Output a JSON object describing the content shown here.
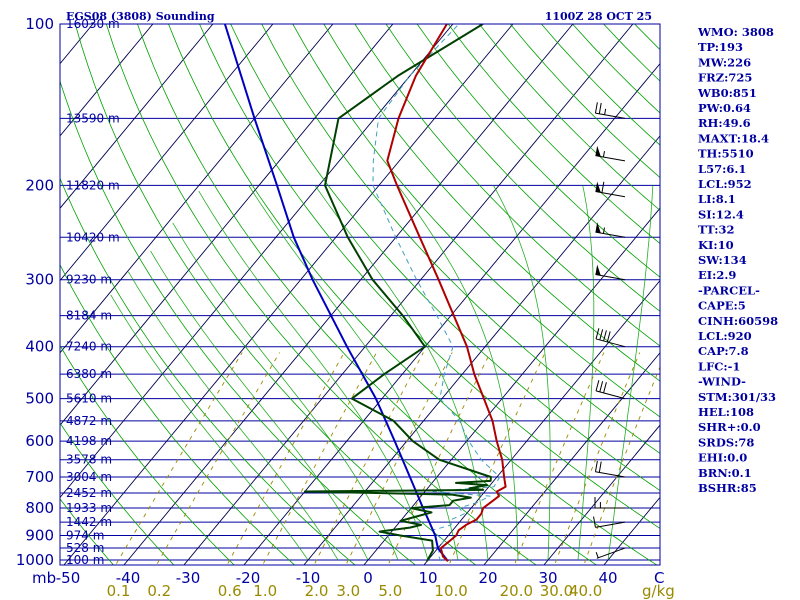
{
  "chart_data": {
    "type": "skew-t",
    "title_left": "EGS08 (3808) Sounding",
    "title_right": "1100Z 28 OCT 25",
    "pressure_unit": "mb",
    "temperature_unit": "C",
    "mixing_ratio_unit": "g/kg",
    "pressure_ticks": [
      100,
      200,
      300,
      400,
      500,
      600,
      700,
      800,
      900,
      1000
    ],
    "temperature_ticks": [
      -50,
      -40,
      -30,
      -20,
      -10,
      0,
      10,
      20,
      30,
      40
    ],
    "mixing_ratio_ticks": [
      "0.1",
      "0.2",
      "0.6",
      "1.0",
      "2.0",
      "3.0",
      "5.0",
      "10.0",
      "20.0",
      "30.0",
      "40.0"
    ],
    "height_labels": [
      {
        "p": 100,
        "label": "16030 m"
      },
      {
        "p": 150,
        "label": "13590 m"
      },
      {
        "p": 200,
        "label": "11820 m"
      },
      {
        "p": 250,
        "label": "10420 m"
      },
      {
        "p": 300,
        "label": "9230 m"
      },
      {
        "p": 350,
        "label": "8184 m"
      },
      {
        "p": 400,
        "label": "7240 m"
      },
      {
        "p": 450,
        "label": "6380 m"
      },
      {
        "p": 500,
        "label": "5610 m"
      },
      {
        "p": 550,
        "label": "4872 m"
      },
      {
        "p": 600,
        "label": "4198 m"
      },
      {
        "p": 650,
        "label": "3578 m"
      },
      {
        "p": 700,
        "label": "3004 m"
      },
      {
        "p": 750,
        "label": "2452 m"
      },
      {
        "p": 800,
        "label": "1933 m"
      },
      {
        "p": 850,
        "label": "1442 m"
      },
      {
        "p": 900,
        "label": "974 m"
      },
      {
        "p": 950,
        "label": "528 m"
      },
      {
        "p": 1000,
        "label": "100 m"
      }
    ],
    "temperature_profile": [
      {
        "p": 1005,
        "t": 13.5
      },
      {
        "p": 985,
        "t": 12.0
      },
      {
        "p": 950,
        "t": 10.5
      },
      {
        "p": 920,
        "t": 11.0
      },
      {
        "p": 900,
        "t": 11.3
      },
      {
        "p": 880,
        "t": 11.0
      },
      {
        "p": 860,
        "t": 11.5
      },
      {
        "p": 840,
        "t": 12.5
      },
      {
        "p": 820,
        "t": 12.5
      },
      {
        "p": 800,
        "t": 12.0
      },
      {
        "p": 780,
        "t": 12.5
      },
      {
        "p": 760,
        "t": 13.0
      },
      {
        "p": 745,
        "t": 12.0
      },
      {
        "p": 730,
        "t": 12.8
      },
      {
        "p": 700,
        "t": 11.2
      },
      {
        "p": 650,
        "t": 8.5
      },
      {
        "p": 600,
        "t": 5.0
      },
      {
        "p": 550,
        "t": 1.5
      },
      {
        "p": 500,
        "t": -3.0
      },
      {
        "p": 450,
        "t": -8.0
      },
      {
        "p": 400,
        "t": -13.0
      },
      {
        "p": 350,
        "t": -19.5
      },
      {
        "p": 300,
        "t": -27.0
      },
      {
        "p": 250,
        "t": -36.0
      },
      {
        "p": 200,
        "t": -47.0
      },
      {
        "p": 180,
        "t": -52.0
      },
      {
        "p": 150,
        "t": -56.0
      },
      {
        "p": 125,
        "t": -59.0
      },
      {
        "p": 100,
        "t": -61.0
      }
    ],
    "dewpoint_profile": [
      {
        "p": 1005,
        "t": 10.0
      },
      {
        "p": 960,
        "t": 9.5
      },
      {
        "p": 920,
        "t": 8.0
      },
      {
        "p": 900,
        "t": 2.0
      },
      {
        "p": 885,
        "t": -2.0
      },
      {
        "p": 870,
        "t": 2.5
      },
      {
        "p": 860,
        "t": 4.0
      },
      {
        "p": 845,
        "t": 0.0
      },
      {
        "p": 830,
        "t": 2.0
      },
      {
        "p": 815,
        "t": 4.0
      },
      {
        "p": 800,
        "t": 0.0
      },
      {
        "p": 790,
        "t": 6.0
      },
      {
        "p": 775,
        "t": 6.0
      },
      {
        "p": 765,
        "t": 8.5
      },
      {
        "p": 755,
        "t": 5.0
      },
      {
        "p": 745,
        "t": -20.0
      },
      {
        "p": 740,
        "t": 9.5
      },
      {
        "p": 735,
        "t": 7.0
      },
      {
        "p": 725,
        "t": 9.5
      },
      {
        "p": 718,
        "t": 4.0
      },
      {
        "p": 712,
        "t": 9.5
      },
      {
        "p": 700,
        "t": 9.0
      },
      {
        "p": 650,
        "t": -2.0
      },
      {
        "p": 600,
        "t": -9.0
      },
      {
        "p": 550,
        "t": -15.0
      },
      {
        "p": 500,
        "t": -25.0
      },
      {
        "p": 450,
        "t": -23.0
      },
      {
        "p": 400,
        "t": -20.0
      },
      {
        "p": 350,
        "t": -28.0
      },
      {
        "p": 300,
        "t": -38.0
      },
      {
        "p": 250,
        "t": -48.0
      },
      {
        "p": 200,
        "t": -59.0
      },
      {
        "p": 150,
        "t": -66.0
      },
      {
        "p": 125,
        "t": -62.0
      },
      {
        "p": 100,
        "t": -55.0
      }
    ],
    "parcel_profile": [
      {
        "p": 1005,
        "t": 13.5
      },
      {
        "p": 950,
        "t": 10.0
      },
      {
        "p": 900,
        "t": 7.8
      },
      {
        "p": 850,
        "t": 5.0
      },
      {
        "p": 800,
        "t": 2.0
      },
      {
        "p": 700,
        "t": -4.5
      },
      {
        "p": 600,
        "t": -12.0
      },
      {
        "p": 500,
        "t": -21.0
      },
      {
        "p": 400,
        "t": -33.0
      },
      {
        "p": 300,
        "t": -48.0
      },
      {
        "p": 250,
        "t": -57.0
      },
      {
        "p": 200,
        "t": -67.0
      },
      {
        "p": 150,
        "t": -80.0
      },
      {
        "p": 100,
        "t": -98.0
      }
    ],
    "wind_barbs": [
      {
        "p": 150,
        "dir": 280,
        "kt": 25
      },
      {
        "p": 180,
        "dir": 280,
        "kt": 55
      },
      {
        "p": 210,
        "dir": 280,
        "kt": 60
      },
      {
        "p": 250,
        "dir": 280,
        "kt": 55
      },
      {
        "p": 300,
        "dir": 280,
        "kt": 50
      },
      {
        "p": 400,
        "dir": 285,
        "kt": 40
      },
      {
        "p": 500,
        "dir": 285,
        "kt": 30
      },
      {
        "p": 700,
        "dir": 280,
        "kt": 20
      },
      {
        "p": 800,
        "dir": 270,
        "kt": 15
      },
      {
        "p": 850,
        "dir": 260,
        "kt": 10
      },
      {
        "p": 950,
        "dir": 250,
        "kt": 5
      }
    ],
    "indices": [
      "WMO: 3808",
      "TP:193",
      "MW:226",
      "FRZ:725",
      "WB0:851",
      "PW:0.64",
      "RH:49.6",
      "MAXT:18.4",
      "TH:5510",
      "L57:6.1",
      "LCL:952",
      "LI:8.1",
      "SI:12.4",
      "TT:32",
      "KI:10",
      "SW:134",
      "EI:2.9",
      "-PARCEL-",
      "CAPE:5",
      "CINH:60598",
      "LCL:920",
      "CAP:7.8",
      "LFC:-1",
      "-WIND-",
      "STM:301/33",
      "HEL:108",
      "SHR+:0.0",
      "SRDS:78",
      "EHI:0.0",
      "BRN:0.1",
      "BSHR:85"
    ],
    "colors": {
      "isobar": "#0000a0",
      "isotherm": "#000050",
      "dry_adiabat": "#00a000",
      "moist_adiabat": "#00a000",
      "mixing_ratio": "#9a8a00",
      "temperature": "#b00000",
      "dewpoint": "#004000",
      "parcel": "#0000c0",
      "wet_bulb": "#40a0c0",
      "text": "#0000a0"
    }
  }
}
